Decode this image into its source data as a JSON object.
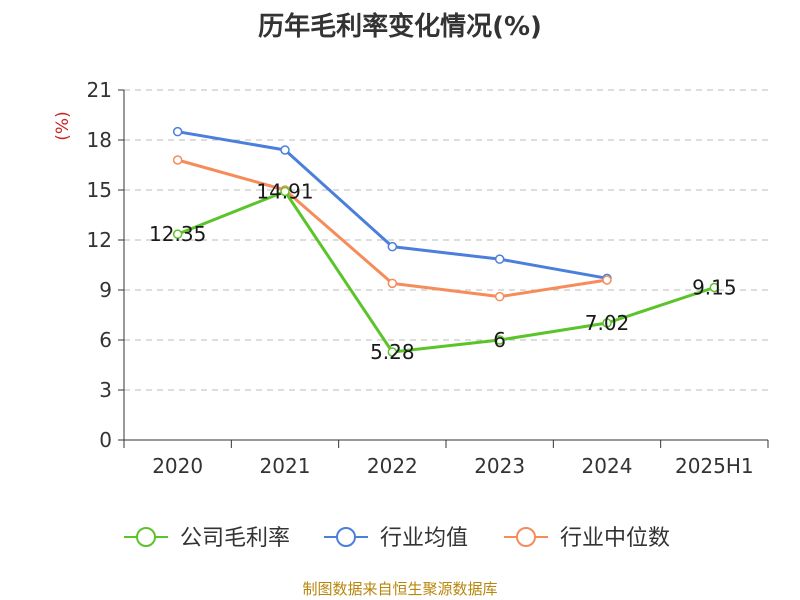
{
  "chart_data": {
    "type": "line",
    "title": "历年毛利率变化情况(%)",
    "ylabel": "(%)",
    "xlabel": "",
    "categories": [
      "2020",
      "2021",
      "2022",
      "2023",
      "2024",
      "2025H1"
    ],
    "ylim": [
      0,
      21
    ],
    "yticks": [
      0,
      3,
      6,
      9,
      12,
      15,
      18,
      21
    ],
    "grid": true,
    "legend_position": "bottom",
    "series": [
      {
        "name": "公司毛利率",
        "color": "#5cc42b",
        "values": [
          12.35,
          14.91,
          5.28,
          6,
          7.02,
          9.15
        ],
        "labels": [
          "12.35",
          "14.91",
          "5.28",
          "6",
          "7.02",
          "9.15"
        ]
      },
      {
        "name": "行业均值",
        "color": "#4a7fdb",
        "values": [
          18.5,
          17.4,
          11.6,
          10.85,
          9.7,
          null
        ]
      },
      {
        "name": "行业中位数",
        "color": "#f58c5a",
        "values": [
          16.8,
          15.0,
          9.4,
          8.6,
          9.6,
          null
        ]
      }
    ]
  },
  "footer": {
    "source": "制图数据来自恒生聚源数据库"
  }
}
